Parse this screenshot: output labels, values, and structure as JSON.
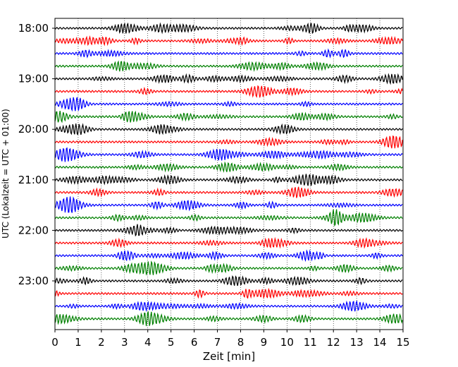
{
  "chart_data": {
    "type": "line",
    "title": "",
    "xlabel": "Zeit  [min]",
    "ylabel": "UTC (Lokalzeit = UTC + 01:00)",
    "xlim": [
      0,
      15
    ],
    "x_ticks": [
      "0",
      "1",
      "2",
      "3",
      "4",
      "5",
      "6",
      "7",
      "8",
      "9",
      "10",
      "11",
      "12",
      "13",
      "14",
      "15"
    ],
    "y_ticks": [
      "18:00",
      "19:00",
      "20:00",
      "21:00",
      "22:00",
      "23:00"
    ],
    "grid": "vertical dotted",
    "trace_minutes_per_line": 15,
    "trace_colors": [
      "#000000",
      "#ff0000",
      "#0000ff",
      "#008000"
    ],
    "traces": [
      {
        "start": "18:00"
      },
      {
        "start": "18:15"
      },
      {
        "start": "18:30"
      },
      {
        "start": "18:45"
      },
      {
        "start": "19:00"
      },
      {
        "start": "19:15"
      },
      {
        "start": "19:30"
      },
      {
        "start": "19:45"
      },
      {
        "start": "20:00"
      },
      {
        "start": "20:15"
      },
      {
        "start": "20:30"
      },
      {
        "start": "20:45"
      },
      {
        "start": "21:00"
      },
      {
        "start": "21:15"
      },
      {
        "start": "21:30"
      },
      {
        "start": "21:45"
      },
      {
        "start": "22:00"
      },
      {
        "start": "22:15"
      },
      {
        "start": "22:30"
      },
      {
        "start": "22:45"
      },
      {
        "start": "23:00"
      },
      {
        "start": "23:15"
      },
      {
        "start": "23:30"
      },
      {
        "start": "23:45"
      }
    ]
  }
}
